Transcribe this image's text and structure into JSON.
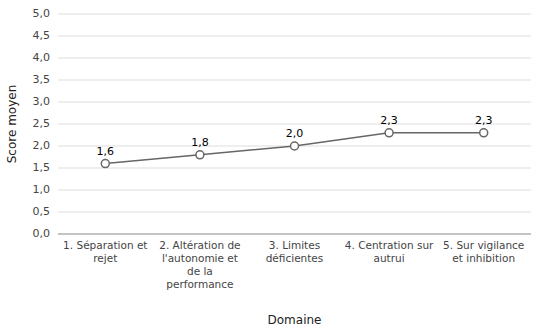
{
  "chart_data": {
    "type": "line",
    "categories": [
      "1. Séparation et\nrejet",
      "2. Altération de\nl'autonomie et\nde la\nperformance",
      "3. Limites\ndéficientes",
      "4. Centration sur\nautrui",
      "5. Sur vigilance\net inhibition"
    ],
    "values": [
      1.6,
      1.8,
      2.0,
      2.3,
      2.3
    ],
    "value_labels": [
      "1,6",
      "1,8",
      "2,0",
      "2,3",
      "2,3"
    ],
    "data_labels": true,
    "color": "#666666",
    "marker": "circle",
    "xlabel": "Domaine",
    "ylabel": "Score moyen",
    "ylim": [
      0.0,
      5.0
    ],
    "yticks": [
      {
        "value": 0.0,
        "label": "0,0"
      },
      {
        "value": 0.5,
        "label": "0,5"
      },
      {
        "value": 1.0,
        "label": "1,0"
      },
      {
        "value": 1.5,
        "label": "1,5"
      },
      {
        "value": 2.0,
        "label": "2,0"
      },
      {
        "value": 2.5,
        "label": "2,5"
      },
      {
        "value": 3.0,
        "label": "3,0"
      },
      {
        "value": 3.5,
        "label": "3,5"
      },
      {
        "value": 4.0,
        "label": "4,0"
      },
      {
        "value": 4.5,
        "label": "4,5"
      },
      {
        "value": 5.0,
        "label": "5,0"
      }
    ],
    "grid": true
  }
}
